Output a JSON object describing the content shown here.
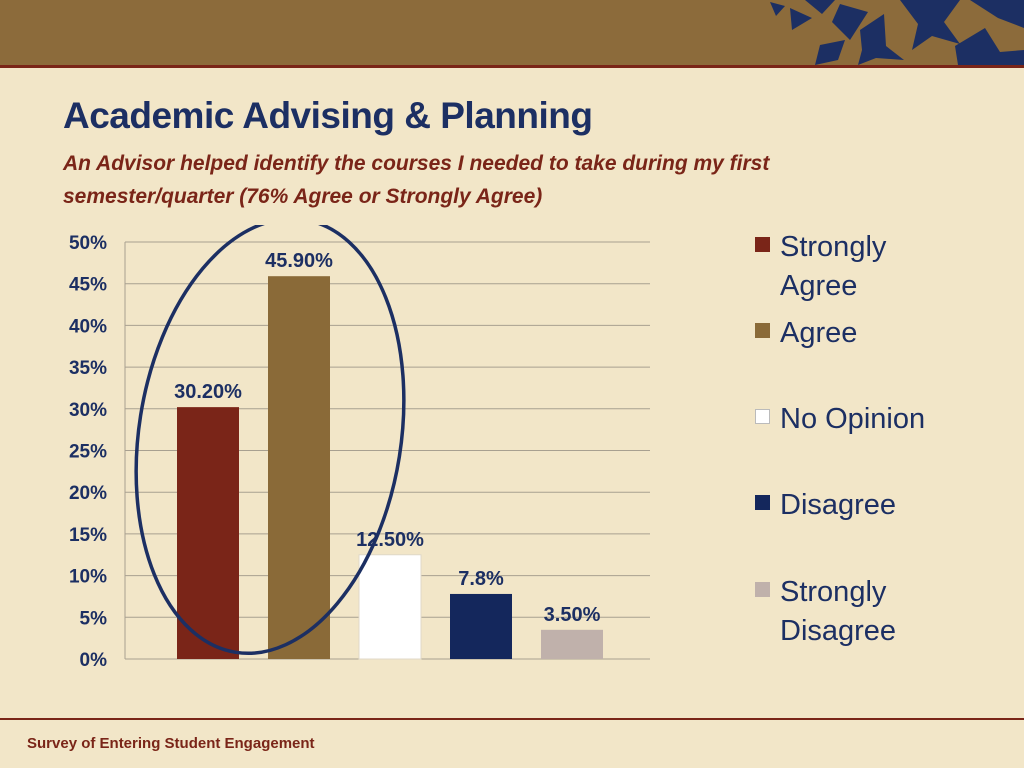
{
  "slide": {
    "title": "Academic Advising & Planning",
    "subtitle": "An Advisor helped identify the courses I needed to take during my first semester/quarter (76% Agree or Strongly Agree)",
    "footer": "Survey of Entering Student Engagement"
  },
  "decor": {
    "band_color": "#8c6b3b",
    "star_color": "#1c2f63",
    "accent_color": "#7a2518",
    "highlight_ellipse": "navy-ellipse-around-strongly-agree-and-agree"
  },
  "chart_data": {
    "type": "bar",
    "categories": [
      "Strongly Agree",
      "Agree",
      "No Opinion",
      "Disagree",
      "Strongly Disagree"
    ],
    "values": [
      30.2,
      45.9,
      12.5,
      7.8,
      3.5
    ],
    "data_labels": [
      "30.20%",
      "45.90%",
      "12.50%",
      "7.8%",
      "3.50%"
    ],
    "colors": [
      "#7a2518",
      "#8a6a38",
      "#ffffff",
      "#14275c",
      "#c0b1ab"
    ],
    "yticks": [
      "0%",
      "5%",
      "10%",
      "15%",
      "20%",
      "25%",
      "30%",
      "35%",
      "40%",
      "45%",
      "50%"
    ],
    "ylim": [
      0,
      50
    ],
    "grid": true,
    "legend": {
      "position": "right",
      "entries": [
        {
          "line1": "Strongly",
          "line2": "Agree"
        },
        {
          "line1": "Agree",
          "line2": ""
        },
        {
          "line1": "No Opinion",
          "line2": ""
        },
        {
          "line1": "Disagree",
          "line2": ""
        },
        {
          "line1": "Strongly",
          "line2": "Disagree"
        }
      ]
    }
  }
}
